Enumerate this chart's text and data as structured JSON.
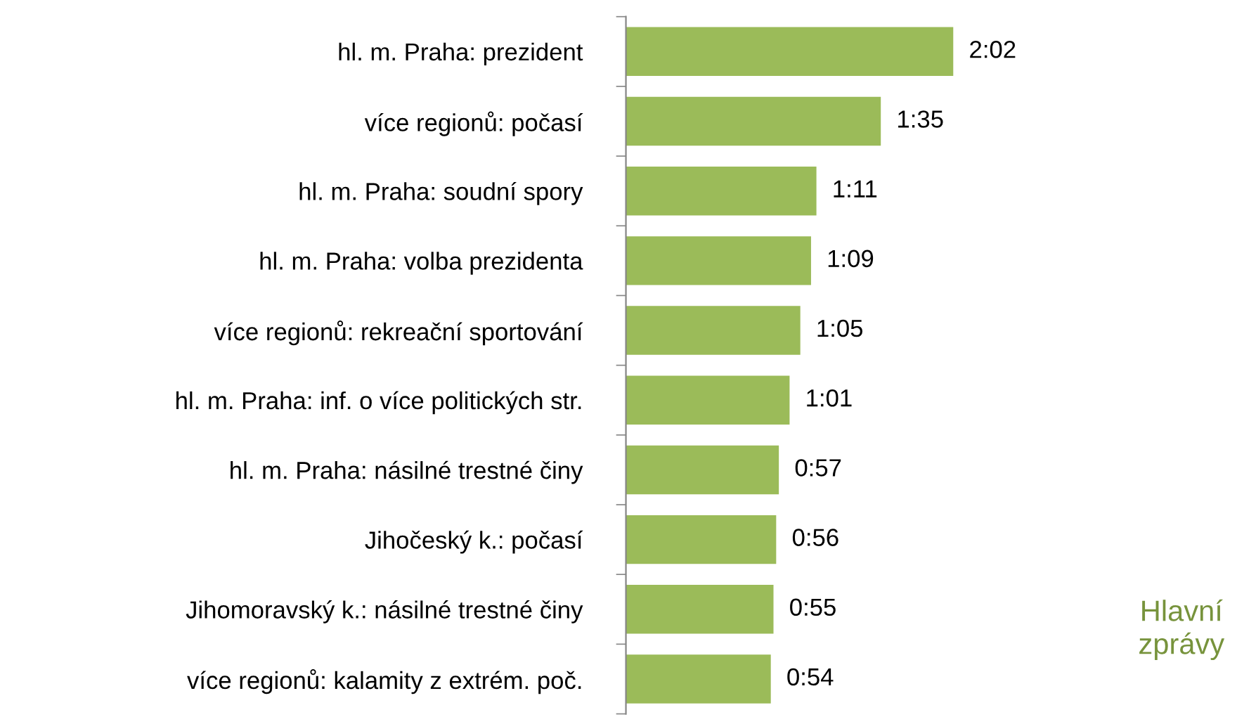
{
  "chart_data": {
    "type": "bar",
    "orientation": "horizontal",
    "categories": [
      "hl. m. Praha: prezident",
      "více regionů: počasí",
      "hl. m. Praha: soudní spory",
      "hl. m. Praha: volba prezidenta",
      "více regionů: rekreační sportování",
      "hl. m. Praha: inf. o více politických str.",
      "hl. m. Praha: násilné trestné činy",
      "Jihočeský k.: počasí",
      "Jihomoravský k.: násilné trestné činy",
      "více regionů: kalamity z extrém. poč."
    ],
    "values": [
      122,
      95,
      71,
      69,
      65,
      61,
      57,
      56,
      55,
      54
    ],
    "value_labels": [
      "2:02",
      "1:35",
      "1:11",
      "1:09",
      "1:05",
      "1:01",
      "0:57",
      "0:56",
      "0:55",
      "0:54"
    ],
    "color": "#9bbb59",
    "annotations": [
      "Hlavní\nzprávy"
    ],
    "grid": false,
    "legend": false
  }
}
